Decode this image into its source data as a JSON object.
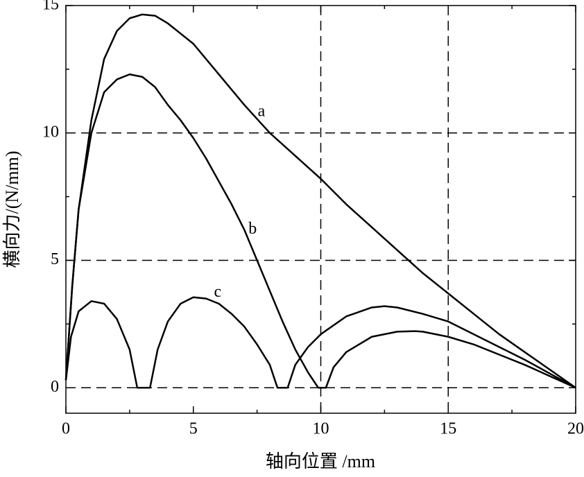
{
  "chart_data": {
    "type": "line",
    "x_label": "轴向位置 /mm",
    "y_label": "横向力/(N/mm)",
    "xlim": [
      0,
      20
    ],
    "ylim": [
      -1,
      15
    ],
    "xticks": [
      0,
      5,
      10,
      15,
      20
    ],
    "yticks": [
      0,
      5,
      10,
      15
    ],
    "xminorticks": [
      2.5,
      7.5,
      12.5,
      17.5
    ],
    "yminorticks": [
      2.5,
      7.5,
      12.5
    ],
    "grid_x": [
      10,
      15
    ],
    "grid_y": [
      0,
      5,
      10
    ],
    "color": "#000000",
    "series": [
      {
        "name": "a",
        "x": [
          0,
          0.25,
          0.5,
          1,
          1.5,
          2,
          2.5,
          3,
          3.5,
          4,
          5,
          6,
          7,
          8,
          9,
          10,
          11,
          12,
          13,
          14,
          15,
          16,
          17,
          18,
          19,
          20
        ],
        "values": [
          0.3,
          4,
          7,
          10.5,
          12.9,
          14.0,
          14.5,
          14.65,
          14.6,
          14.3,
          13.5,
          12.3,
          11.1,
          10.0,
          9.1,
          8.2,
          7.2,
          6.3,
          5.4,
          4.5,
          3.7,
          2.9,
          2.1,
          1.4,
          0.7,
          0
        ]
      },
      {
        "name": "b",
        "x": [
          0,
          0.25,
          0.5,
          1,
          1.5,
          2,
          2.5,
          3,
          3.5,
          4,
          4.5,
          5,
          5.5,
          6,
          6.5,
          7,
          7.5,
          8,
          8.5,
          9,
          9.5,
          9.9,
          10.2,
          10.5,
          11,
          12,
          13,
          13.7,
          14,
          15,
          16,
          17,
          18,
          19,
          20
        ],
        "values": [
          0.3,
          4,
          7,
          10,
          11.6,
          12.1,
          12.3,
          12.2,
          11.8,
          11.1,
          10.5,
          9.8,
          9.0,
          8.1,
          7.2,
          6.2,
          5.0,
          3.8,
          2.6,
          1.5,
          0.6,
          0,
          0,
          0.8,
          1.4,
          2.0,
          2.2,
          2.22,
          2.2,
          2.0,
          1.7,
          1.3,
          0.9,
          0.45,
          0
        ]
      },
      {
        "name": "c",
        "x": [
          0,
          0.2,
          0.5,
          1,
          1.5,
          2,
          2.5,
          2.8,
          3.3,
          3.6,
          4,
          4.5,
          5,
          5.5,
          6,
          6.5,
          7,
          7.5,
          8,
          8.3,
          8.7,
          9,
          9.5,
          10,
          11,
          12,
          12.5,
          13,
          14,
          15,
          16,
          17,
          18,
          19,
          20
        ],
        "values": [
          0.3,
          2.0,
          3.0,
          3.4,
          3.3,
          2.7,
          1.5,
          0,
          0,
          1.5,
          2.6,
          3.3,
          3.55,
          3.5,
          3.3,
          2.9,
          2.4,
          1.7,
          0.9,
          0,
          0,
          0.9,
          1.6,
          2.1,
          2.8,
          3.15,
          3.2,
          3.15,
          2.9,
          2.6,
          2.1,
          1.6,
          1.1,
          0.55,
          0
        ]
      }
    ]
  }
}
